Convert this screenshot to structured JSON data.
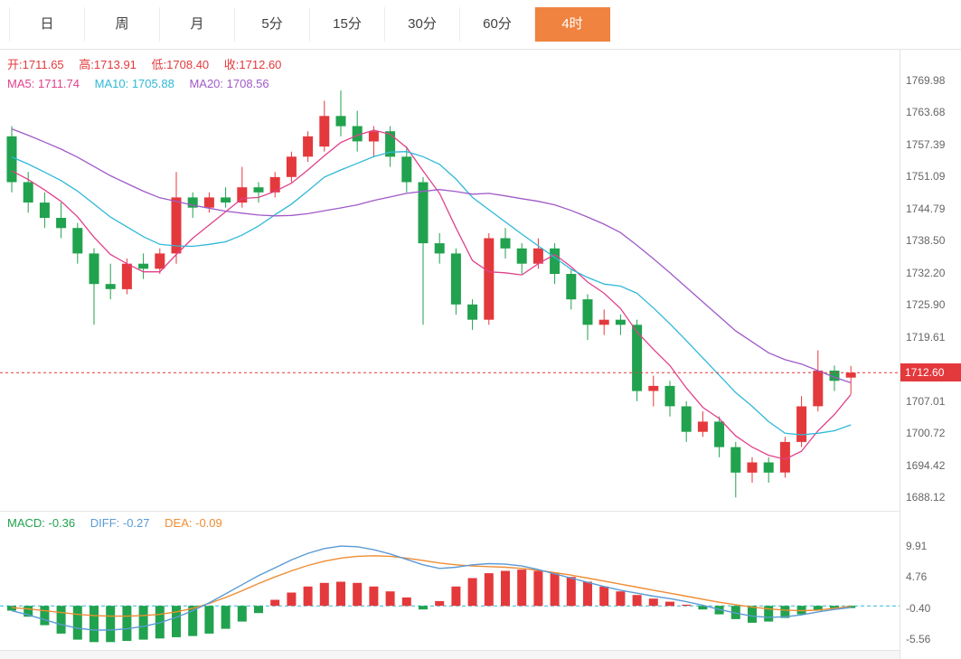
{
  "tabs": {
    "items": [
      {
        "label": "日"
      },
      {
        "label": "周"
      },
      {
        "label": "月"
      },
      {
        "label": "5分"
      },
      {
        "label": "15分"
      },
      {
        "label": "30分"
      },
      {
        "label": "60分"
      },
      {
        "label": "4时",
        "active": true
      }
    ]
  },
  "main_chart": {
    "legend": {
      "open_label": "开:",
      "open": "1711.65",
      "high_label": "高:",
      "high": "1713.91",
      "low_label": "低:",
      "low": "1708.40",
      "close_label": "收:",
      "close": "1712.60"
    },
    "ma_legend": {
      "ma5_label": "MA5: ",
      "ma5": "1711.74",
      "ma10_label": "MA10: ",
      "ma10": "1705.88",
      "ma20_label": "MA20: ",
      "ma20": "1708.56"
    },
    "y_axis": [
      "1769.98",
      "1763.68",
      "1757.39",
      "1751.09",
      "1744.79",
      "1738.50",
      "1732.20",
      "1725.90",
      "1719.61",
      "1707.01",
      "1700.72",
      "1694.42",
      "1688.12"
    ],
    "current_price": "1712.60"
  },
  "macd_panel": {
    "legend": {
      "macd_label": "MACD: ",
      "macd": "-0.36",
      "diff_label": "DIFF: ",
      "diff": "-0.27",
      "dea_label": "DEA: ",
      "dea": "-0.09"
    },
    "y_axis": [
      "9.91",
      "4.76",
      "-0.40",
      "-5.56"
    ]
  },
  "colors": {
    "up": "#e4393c",
    "down": "#21a24e",
    "ma5": "#e0418c",
    "ma10": "#2fb8d8",
    "ma20": "#a05ac8",
    "diff": "#5b9bd5",
    "dea": "#ef8d33",
    "price_line": "#e4393c",
    "zero_line": "#2fb8d8",
    "tab_active_bg": "#f0833f"
  },
  "chart_data": [
    {
      "type": "candlestick",
      "title": "4时 K线 (4-hour candles)",
      "ylim": [
        1685.5,
        1776.0
      ],
      "ma_periods": [
        5,
        10,
        20
      ],
      "current_price": 1712.6,
      "ohlc": [
        [
          1759,
          1761,
          1748,
          1750
        ],
        [
          1750,
          1752,
          1744,
          1746
        ],
        [
          1746,
          1748,
          1741,
          1743
        ],
        [
          1743,
          1746,
          1739,
          1741
        ],
        [
          1741,
          1742,
          1734,
          1736
        ],
        [
          1736,
          1737,
          1722,
          1730
        ],
        [
          1730,
          1734,
          1727,
          1729
        ],
        [
          1729,
          1735,
          1728,
          1734
        ],
        [
          1734,
          1736,
          1731,
          1733
        ],
        [
          1733,
          1737,
          1732,
          1736
        ],
        [
          1736,
          1752,
          1734,
          1747
        ],
        [
          1747,
          1748,
          1743,
          1745
        ],
        [
          1745,
          1748,
          1744,
          1747
        ],
        [
          1747,
          1749,
          1745,
          1746
        ],
        [
          1746,
          1753,
          1745,
          1749
        ],
        [
          1749,
          1750,
          1746,
          1748
        ],
        [
          1748,
          1752,
          1747,
          1751
        ],
        [
          1751,
          1756,
          1750,
          1755
        ],
        [
          1755,
          1760,
          1754,
          1759
        ],
        [
          1757,
          1766,
          1756,
          1763
        ],
        [
          1763,
          1768,
          1759,
          1761
        ],
        [
          1761,
          1764,
          1756,
          1758
        ],
        [
          1758,
          1761,
          1755,
          1760
        ],
        [
          1760,
          1761,
          1753,
          1755
        ],
        [
          1755,
          1757,
          1748,
          1750
        ],
        [
          1750,
          1751,
          1722,
          1738
        ],
        [
          1738,
          1740,
          1734,
          1736
        ],
        [
          1736,
          1737,
          1724,
          1726
        ],
        [
          1726,
          1727,
          1721,
          1723
        ],
        [
          1723,
          1740,
          1722,
          1739
        ],
        [
          1739,
          1741,
          1735,
          1737
        ],
        [
          1737,
          1738,
          1732,
          1734
        ],
        [
          1734,
          1739,
          1733,
          1737
        ],
        [
          1737,
          1738,
          1730,
          1732
        ],
        [
          1732,
          1733,
          1725,
          1727
        ],
        [
          1727,
          1728,
          1719,
          1722
        ],
        [
          1722,
          1725,
          1720,
          1723
        ],
        [
          1723,
          1724,
          1720,
          1722
        ],
        [
          1722,
          1723,
          1707,
          1709
        ],
        [
          1709,
          1712,
          1706,
          1710
        ],
        [
          1710,
          1711,
          1704,
          1706
        ],
        [
          1706,
          1707,
          1699,
          1701
        ],
        [
          1701,
          1705,
          1700,
          1703
        ],
        [
          1703,
          1704,
          1696,
          1698
        ],
        [
          1698,
          1699,
          1688.1,
          1693
        ],
        [
          1693,
          1696,
          1691,
          1695
        ],
        [
          1695,
          1696,
          1691,
          1693
        ],
        [
          1693,
          1700,
          1692,
          1699
        ],
        [
          1699,
          1708,
          1698,
          1706
        ],
        [
          1706,
          1717,
          1705,
          1713
        ],
        [
          1713,
          1714,
          1709,
          1711
        ],
        [
          1711.65,
          1713.91,
          1708.4,
          1712.6
        ]
      ]
    },
    {
      "type": "bar",
      "title": "MACD",
      "ylim": [
        -7.3,
        15.6
      ],
      "histogram": [
        -0.8,
        -1.8,
        -3.2,
        -4.6,
        -5.6,
        -6.0,
        -6.0,
        -5.8,
        -5.6,
        -5.4,
        -5.2,
        -5.0,
        -4.6,
        -3.8,
        -2.6,
        -1.2,
        1.0,
        2.2,
        3.2,
        3.8,
        4.0,
        3.8,
        3.2,
        2.4,
        1.4,
        -0.6,
        0.8,
        3.2,
        4.6,
        5.4,
        5.8,
        6.0,
        5.8,
        5.4,
        4.8,
        4.0,
        3.2,
        2.4,
        1.8,
        1.2,
        0.7,
        0.2,
        -0.6,
        -1.4,
        -2.2,
        -2.8,
        -2.6,
        -2.0,
        -1.4,
        -0.8,
        -0.4,
        -0.36
      ],
      "diff": [
        -0.8,
        -1.5,
        -2.3,
        -3.1,
        -3.7,
        -4.0,
        -4.0,
        -3.8,
        -3.4,
        -2.8,
        -1.9,
        -0.8,
        0.5,
        2.0,
        3.5,
        5.0,
        6.3,
        7.6,
        8.7,
        9.5,
        9.9,
        9.8,
        9.3,
        8.6,
        7.7,
        6.8,
        6.2,
        6.4,
        6.8,
        7.0,
        6.9,
        6.6,
        6.0,
        5.3,
        4.6,
        3.9,
        3.2,
        2.6,
        2.1,
        1.6,
        1.2,
        0.7,
        0.1,
        -0.6,
        -1.2,
        -1.7,
        -1.9,
        -1.8,
        -1.5,
        -1.0,
        -0.6,
        -0.27
      ],
      "dea": [
        -0.3,
        -0.5,
        -0.8,
        -1.1,
        -1.4,
        -1.6,
        -1.7,
        -1.7,
        -1.6,
        -1.4,
        -1.0,
        -0.4,
        0.4,
        1.4,
        2.5,
        3.7,
        4.8,
        5.8,
        6.7,
        7.4,
        7.9,
        8.2,
        8.3,
        8.2,
        7.9,
        7.5,
        7.1,
        6.8,
        6.6,
        6.5,
        6.4,
        6.2,
        5.9,
        5.5,
        5.1,
        4.6,
        4.1,
        3.6,
        3.1,
        2.6,
        2.1,
        1.6,
        1.1,
        0.6,
        0.2,
        -0.2,
        -0.5,
        -0.7,
        -0.8,
        -0.7,
        -0.4,
        -0.09
      ]
    }
  ]
}
